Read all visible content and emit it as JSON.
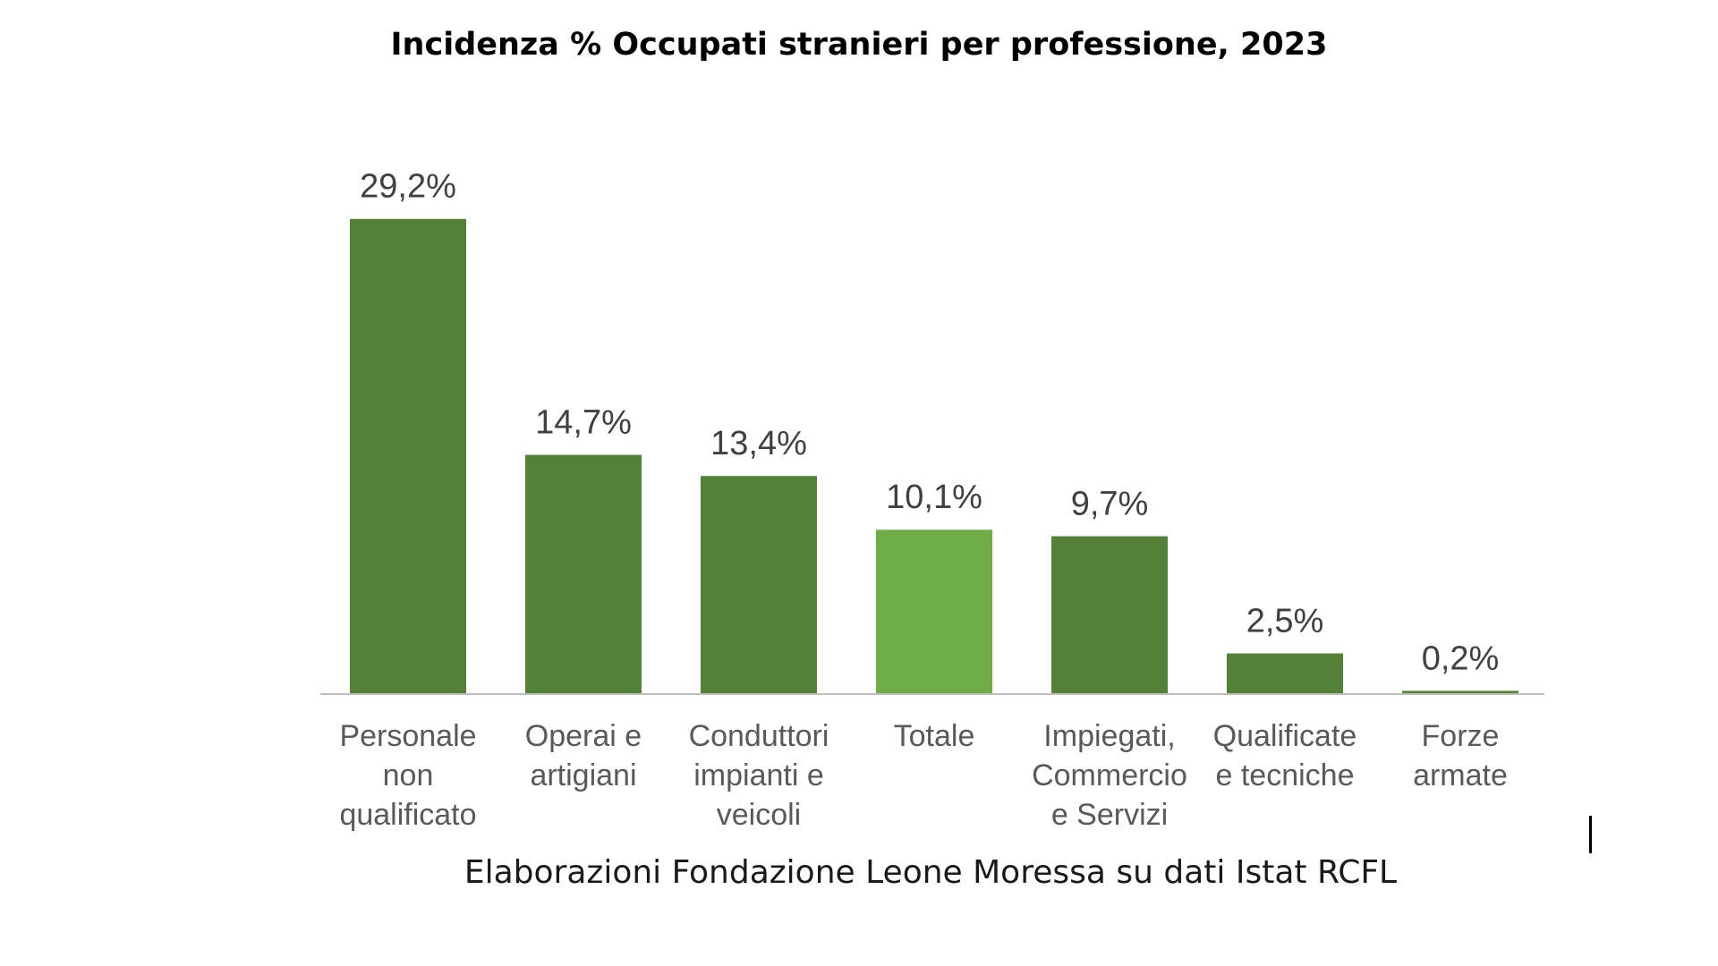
{
  "chart_data": {
    "type": "bar",
    "title": "Incidenza % Occupati stranieri per professione, 2023",
    "categories": [
      [
        "Personale",
        "non",
        "qualificato"
      ],
      [
        "Operai e",
        "artigiani"
      ],
      [
        "Conduttori",
        "impianti e",
        "veicoli"
      ],
      [
        "Totale"
      ],
      [
        "Impiegati,",
        "Commercio",
        "e Servizi"
      ],
      [
        "Qualificate",
        "e tecniche"
      ],
      [
        "Forze",
        "armate"
      ]
    ],
    "values": [
      29.2,
      14.7,
      13.4,
      10.1,
      9.7,
      2.5,
      0.2
    ],
    "value_labels": [
      "29,2%",
      "14,7%",
      "13,4%",
      "10,1%",
      "9,7%",
      "2,5%",
      "0,2%"
    ],
    "highlight_index": 3,
    "colors": {
      "bar": "#538135",
      "highlight": "#70AD47",
      "axis": "#BFBFBF"
    },
    "ylim": [
      0,
      30
    ],
    "grid": false,
    "legend": "none",
    "source": "Elaborazioni Fondazione Leone Moressa su dati Istat RCFL"
  }
}
